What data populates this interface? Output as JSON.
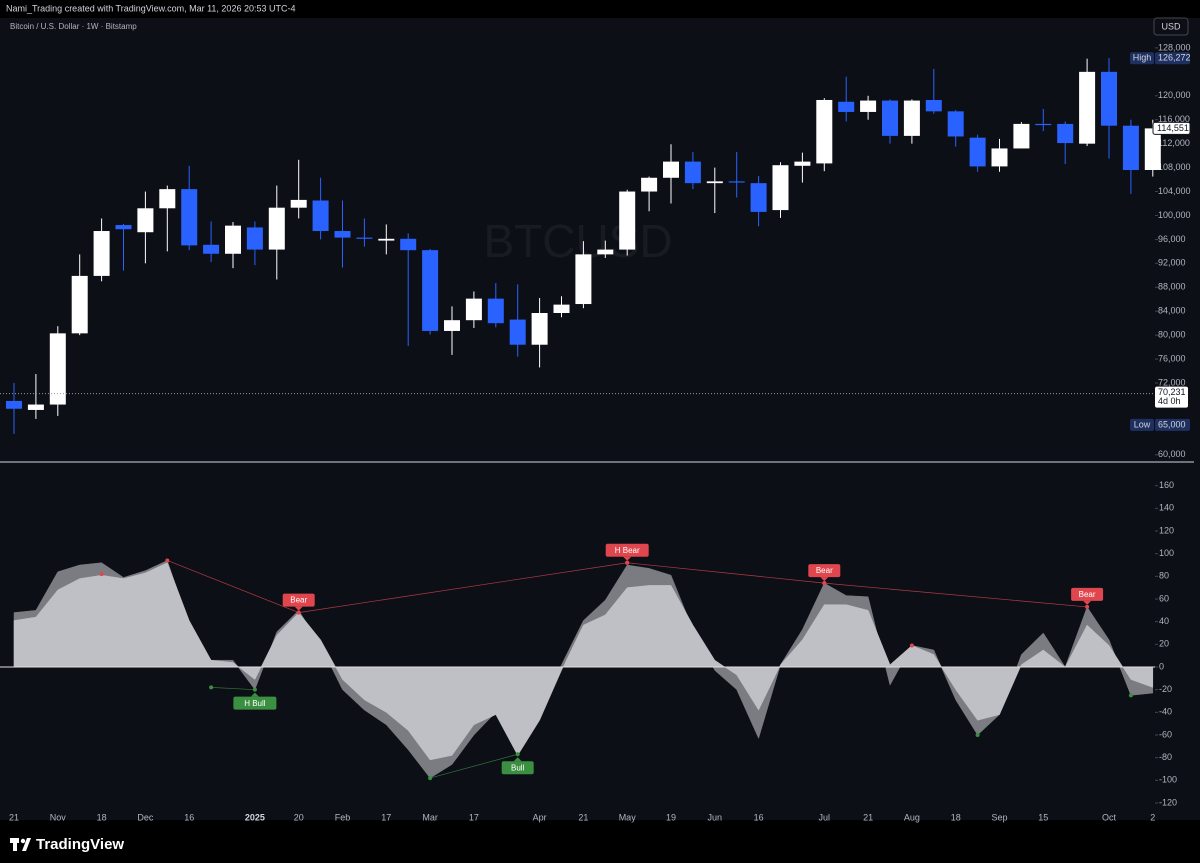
{
  "header": {
    "credit": "Nami_Trading created with TradingView.com, Mar 11, 2026 20:53 UTC-4",
    "symbol": "Bitcoin / U.S. Dollar · 1W · Bitstamp",
    "currency": "USD",
    "watermark": "BTCUSD",
    "brand": "TradingView"
  },
  "chart_data": [
    {
      "type": "candlestick",
      "categories": [
        "21",
        null,
        "Nov",
        null,
        "18",
        null,
        "Dec",
        null,
        "16",
        null,
        null,
        "2025",
        null,
        "20",
        null,
        "Feb",
        null,
        "17",
        null,
        "Mar",
        null,
        "17",
        null,
        null,
        "Apr",
        null,
        "21",
        null,
        "May",
        null,
        "19",
        null,
        "Jun",
        null,
        "16",
        null,
        null,
        "Jul",
        null,
        "21",
        null,
        "Aug",
        null,
        "18",
        null,
        "Sep",
        null,
        "15",
        null,
        null,
        "Oct",
        null,
        "2"
      ],
      "open": [
        69000,
        67500,
        68400,
        80300,
        89900,
        98400,
        97200,
        101200,
        104400,
        95100,
        93600,
        98000,
        94300,
        101300,
        102500,
        97400,
        96300,
        95800,
        96100,
        94200,
        80700,
        82500,
        86100,
        82600,
        78400,
        83700,
        85200,
        93500,
        94300,
        104000,
        106300,
        109000,
        105400,
        105700,
        105400,
        100900,
        108300,
        108700,
        119000,
        117300,
        119200,
        113300,
        119300,
        117400,
        113000,
        108200,
        111200,
        115300,
        115300,
        112000,
        124000,
        115000,
        107600
      ],
      "high": [
        72000,
        73500,
        81500,
        93500,
        99500,
        98600,
        104000,
        105000,
        108300,
        99000,
        98900,
        99000,
        105000,
        109300,
        106300,
        102500,
        99500,
        98500,
        97000,
        94400,
        84800,
        87300,
        88700,
        88500,
        86200,
        86500,
        95700,
        95800,
        104300,
        106500,
        111900,
        110600,
        108000,
        110600,
        106600,
        108900,
        110500,
        119600,
        123200,
        120000,
        119400,
        119400,
        124500,
        117600,
        113500,
        112800,
        115600,
        117800,
        115700,
        126200,
        126300,
        116000,
        116000
      ],
      "low": [
        63500,
        66000,
        66500,
        80000,
        89000,
        90800,
        92000,
        94000,
        94200,
        92200,
        91200,
        91700,
        89300,
        99500,
        96000,
        91300,
        94800,
        93500,
        78200,
        80100,
        76700,
        81200,
        81300,
        76400,
        74600,
        83000,
        84500,
        92900,
        93300,
        100700,
        102000,
        104400,
        100400,
        103000,
        98200,
        99600,
        105500,
        107400,
        115700,
        116000,
        112000,
        112000,
        117000,
        111500,
        107300,
        107300,
        111200,
        114100,
        108600,
        111600,
        109500,
        103600,
        106500
      ],
      "close": [
        67700,
        68400,
        80300,
        89900,
        97400,
        97700,
        101200,
        104400,
        95000,
        93600,
        98300,
        94300,
        101300,
        102600,
        97400,
        96300,
        96100,
        96100,
        94200,
        80700,
        82500,
        86100,
        82000,
        78400,
        83700,
        85100,
        93500,
        94300,
        104000,
        106300,
        109000,
        105400,
        105700,
        105500,
        100600,
        108400,
        109000,
        119300,
        117300,
        119200,
        113300,
        119200,
        117400,
        113200,
        108200,
        111200,
        115300,
        115100,
        112100,
        124000,
        115000,
        107600,
        114551
      ],
      "up_color": "#ffffff",
      "down_color": "#2962ff",
      "ylim": [
        58800,
        133000
      ],
      "yticks": [
        {
          "value": 128000,
          "label": "128,000"
        },
        {
          "value": 120000,
          "label": "120,000"
        },
        {
          "value": 116000,
          "label": "116,000"
        },
        {
          "value": 112000,
          "label": "112,000"
        },
        {
          "value": 108000,
          "label": "108,000"
        },
        {
          "value": 104000,
          "label": "104,000"
        },
        {
          "value": 100000,
          "label": "100,000"
        },
        {
          "value": 96000,
          "label": "96,000"
        },
        {
          "value": 92000,
          "label": "92,000"
        },
        {
          "value": 88000,
          "label": "88,000"
        },
        {
          "value": 84000,
          "label": "84,000"
        },
        {
          "value": 80000,
          "label": "80,000"
        },
        {
          "value": 76000,
          "label": "76,000"
        },
        {
          "value": 72000,
          "label": "72,000"
        },
        {
          "value": 60000,
          "label": "60,000"
        }
      ],
      "markers": [
        {
          "name": "High",
          "value": 126272,
          "label": "126,272"
        },
        {
          "name": "Low",
          "value": 65000,
          "label": "65,000"
        }
      ],
      "last_price": {
        "value": 114551,
        "label": "114,551"
      },
      "price_line": {
        "value": 70231,
        "label": "70,231",
        "countdown": "4d 0h"
      }
    },
    {
      "type": "area",
      "series": [
        {
          "color": "#7b7c82",
          "values": [
            48,
            50,
            84,
            90,
            92,
            79,
            85,
            94,
            37,
            6,
            6,
            -20,
            31,
            50,
            19,
            -20,
            -38,
            -51,
            -73,
            -98,
            -86,
            -60,
            -40,
            -73,
            -42,
            2,
            41,
            59,
            90,
            87,
            81,
            33,
            -3,
            -20,
            -63,
            2,
            33,
            74,
            63,
            62,
            -16,
            19,
            15,
            -29,
            -60,
            -42,
            11,
            30,
            0,
            53,
            24,
            -25,
            -23
          ]
        },
        {
          "color": "#bfc0c5",
          "values": [
            41,
            44,
            68,
            78,
            81,
            78,
            83,
            92,
            41,
            6,
            4,
            -11,
            28,
            48,
            24,
            -11,
            -29,
            -40,
            -56,
            -82,
            -78,
            -51,
            -42,
            -78,
            -47,
            -3,
            37,
            46,
            70,
            72,
            72,
            37,
            6,
            -7,
            -38,
            2,
            24,
            55,
            55,
            50,
            2,
            19,
            11,
            -20,
            -47,
            -42,
            2,
            15,
            0,
            37,
            19,
            -11,
            -18
          ]
        }
      ],
      "ylim": [
        -135,
        180
      ],
      "yticks": [
        160,
        140,
        120,
        100,
        80,
        60,
        40,
        20,
        0,
        -20,
        -40,
        -60,
        -80,
        -100,
        -120
      ],
      "colors": {
        "bear": "#e0464d",
        "bull": "#3b8f40"
      },
      "divergences": [
        {
          "label": "Bear",
          "kind": "bear",
          "from": {
            "x": 7,
            "y": 94
          },
          "to": {
            "x": 13,
            "y": 48
          }
        },
        {
          "label": "H Bull",
          "kind": "bull",
          "from": {
            "x": 9,
            "y": -18
          },
          "to": {
            "x": 11,
            "y": -20
          }
        },
        {
          "label": "H Bear",
          "kind": "bear",
          "from": {
            "x": 13,
            "y": 48
          },
          "to": {
            "x": 28,
            "y": 92
          }
        },
        {
          "label": "Bear",
          "kind": "bear",
          "from": {
            "x": 28,
            "y": 92
          },
          "to": {
            "x": 37,
            "y": 74
          }
        },
        {
          "label": "Bull",
          "kind": "bull",
          "from": {
            "x": 19,
            "y": -98
          },
          "to": {
            "x": 23,
            "y": -77
          }
        },
        {
          "label": "Bear",
          "kind": "bear",
          "from": {
            "x": 37,
            "y": 74
          },
          "to": {
            "x": 49,
            "y": 53
          }
        }
      ],
      "pivots": [
        {
          "kind": "bear",
          "x": 4,
          "y": 82
        },
        {
          "kind": "bear",
          "x": 41,
          "y": 19
        },
        {
          "kind": "bull",
          "x": 44,
          "y": -60
        },
        {
          "kind": "bull",
          "x": 51,
          "y": -25
        }
      ]
    }
  ]
}
